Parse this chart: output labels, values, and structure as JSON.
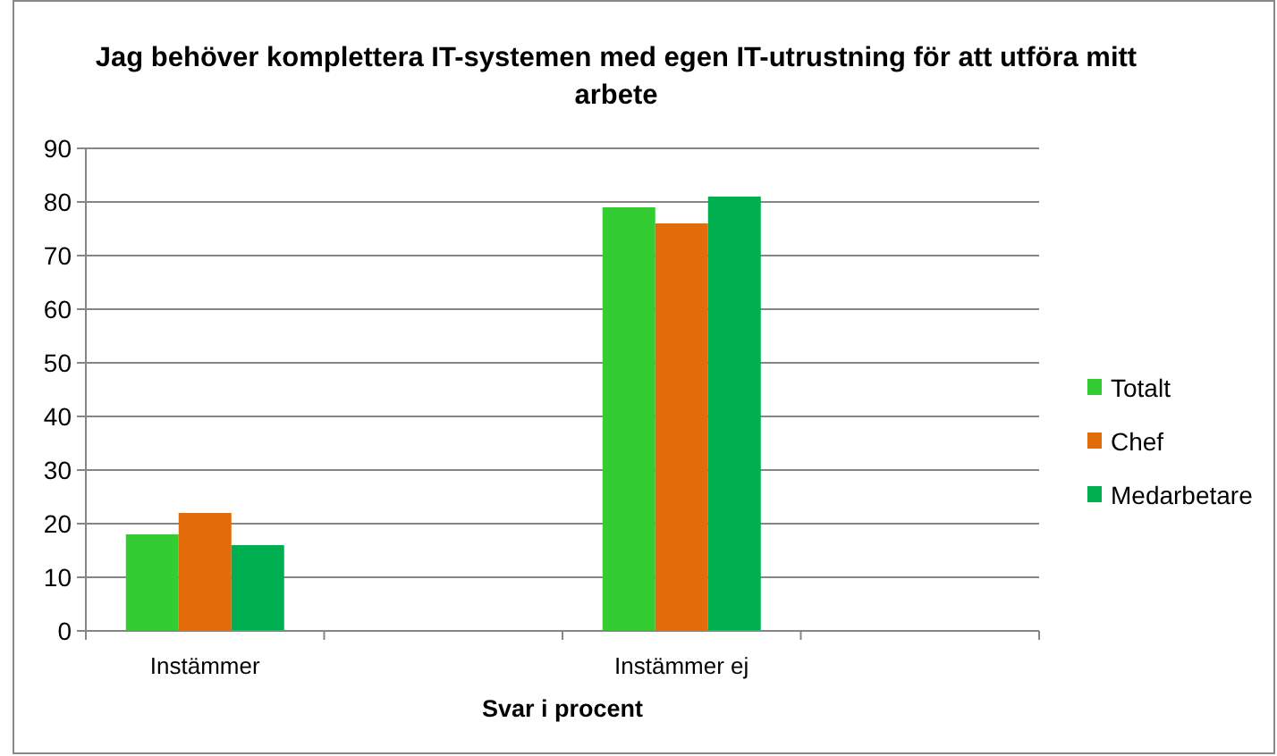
{
  "chart_data": {
    "type": "bar",
    "title": "Jag behöver komplettera IT-systemen med egen IT-utrustning för att utföra mitt arbete",
    "xlabel": "Svar i procent",
    "categories": [
      "Instämmer",
      null,
      "Instämmer ej",
      null
    ],
    "series": [
      {
        "name": "Totalt",
        "color": "#33cc33",
        "values": [
          18,
          null,
          79,
          null
        ]
      },
      {
        "name": "Chef",
        "color": "#e36c0a",
        "values": [
          22,
          null,
          76,
          null
        ]
      },
      {
        "name": "Medarbetare",
        "color": "#00b050",
        "values": [
          16,
          null,
          81,
          null
        ]
      }
    ],
    "ylim": [
      0,
      90
    ],
    "yticks": [
      0,
      10,
      20,
      30,
      40,
      50,
      60,
      70,
      80,
      90
    ],
    "grid": "y",
    "legend": "right"
  }
}
